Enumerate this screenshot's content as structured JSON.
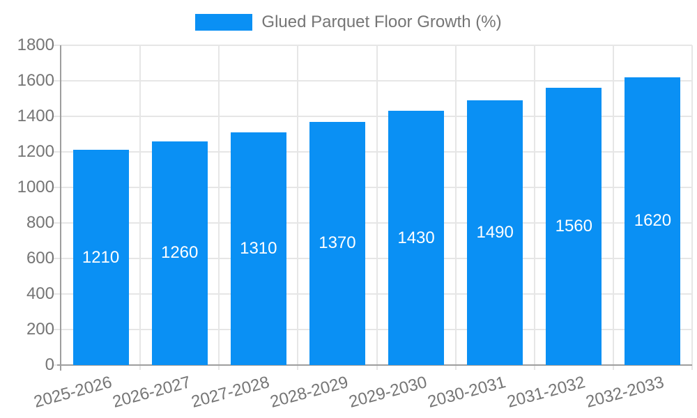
{
  "chart_data": {
    "type": "bar",
    "title": "Glued Parquet Floor Growth (%)",
    "categories": [
      "2025-2026",
      "2026-2027",
      "2027-2028",
      "2028-2029",
      "2029-2030",
      "2030-2031",
      "2031-2032",
      "2032-2033"
    ],
    "series": [
      {
        "name": "Glued Parquet Floor Growth (%)",
        "values": [
          1210,
          1260,
          1310,
          1370,
          1430,
          1490,
          1560,
          1620
        ]
      }
    ],
    "bar_labels": [
      "1210",
      "1260",
      "1310",
      "1370",
      "1430",
      "1490",
      "1560",
      "1620"
    ],
    "ylabel": "",
    "xlabel": "",
    "ylim": [
      0,
      1800
    ],
    "ytick_step": 200,
    "ytick_labels": [
      "0",
      "200",
      "400",
      "600",
      "800",
      "1000",
      "1200",
      "1400",
      "1600",
      "1800"
    ],
    "grid": true,
    "legend_position": "top-center",
    "x_label_rotation_deg": -15,
    "colors": {
      "bar": "#0a90f4",
      "bar_label": "#ffffff",
      "axis_text": "#757575",
      "grid": "#e6e6e6",
      "axis_line": "#9e9e9e",
      "background": "#ffffff"
    }
  }
}
